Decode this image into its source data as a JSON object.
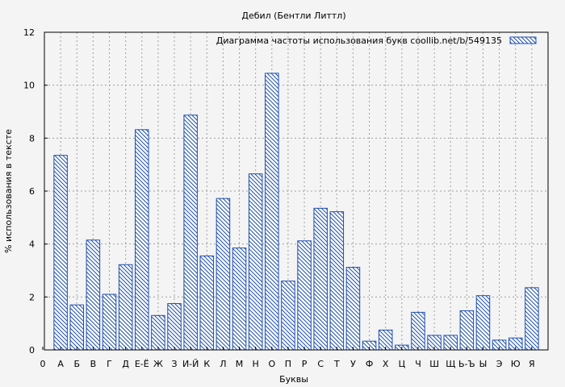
{
  "chart_data": {
    "type": "bar",
    "title": "Дебил (Бентли Литтл)",
    "xlabel": "Буквы",
    "ylabel": "% использования в тексте",
    "legend": "Диаграмма частоты использования букв  coollib.net/b/549135",
    "legend_position": "top-right",
    "grid": true,
    "ylim": [
      0,
      12
    ],
    "yticks": [
      "0",
      "2",
      "4",
      "6",
      "8",
      "10",
      "12"
    ],
    "edge_labels": [
      "0",
      "Я"
    ],
    "categories": [
      "А",
      "Б",
      "В",
      "Г",
      "Д",
      "Е-Ё",
      "Ж",
      "З",
      "И-Й",
      "К",
      "Л",
      "М",
      "Н",
      "О",
      "П",
      "Р",
      "С",
      "Т",
      "У",
      "Ф",
      "Х",
      "Ц",
      "Ч",
      "Ш",
      "Щ",
      "Ь-Ъ",
      "Ы",
      "Э",
      "Ю",
      "Я"
    ],
    "values": [
      7.35,
      1.7,
      4.15,
      2.1,
      3.22,
      8.32,
      1.3,
      1.75,
      8.87,
      3.55,
      5.72,
      3.85,
      6.65,
      10.45,
      2.6,
      4.12,
      5.35,
      5.22,
      3.12,
      0.33,
      0.75,
      0.18,
      1.42,
      0.55,
      0.55,
      1.48,
      2.05,
      0.37,
      0.45,
      2.35
    ]
  }
}
